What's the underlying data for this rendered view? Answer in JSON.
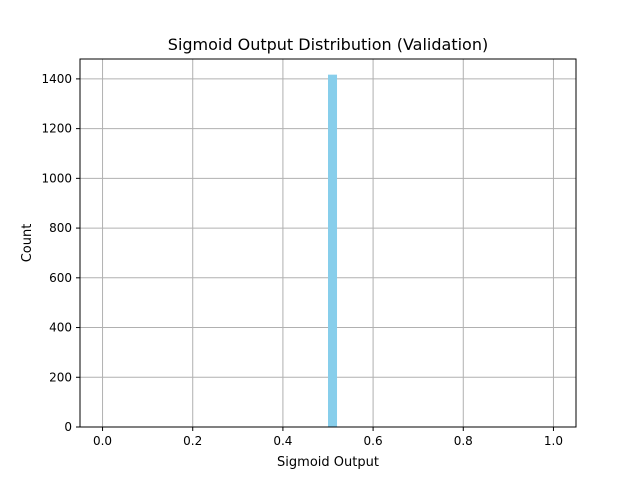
{
  "chart_data": {
    "type": "bar",
    "title": "Sigmoid Output Distribution (Validation)",
    "xlabel": "Sigmoid Output",
    "ylabel": "Count",
    "xlim": [
      -0.05,
      1.05
    ],
    "ylim": [
      0,
      1480
    ],
    "x_ticks": [
      "0.0",
      "0.2",
      "0.4",
      "0.6",
      "0.8",
      "1.0"
    ],
    "y_ticks": [
      "0",
      "200",
      "400",
      "600",
      "800",
      "1000",
      "1200",
      "1400"
    ],
    "grid": true,
    "bar_color": "#87ceeb",
    "bins": [
      {
        "x_start": 0.5,
        "x_end": 0.52,
        "count": 1417
      }
    ]
  }
}
